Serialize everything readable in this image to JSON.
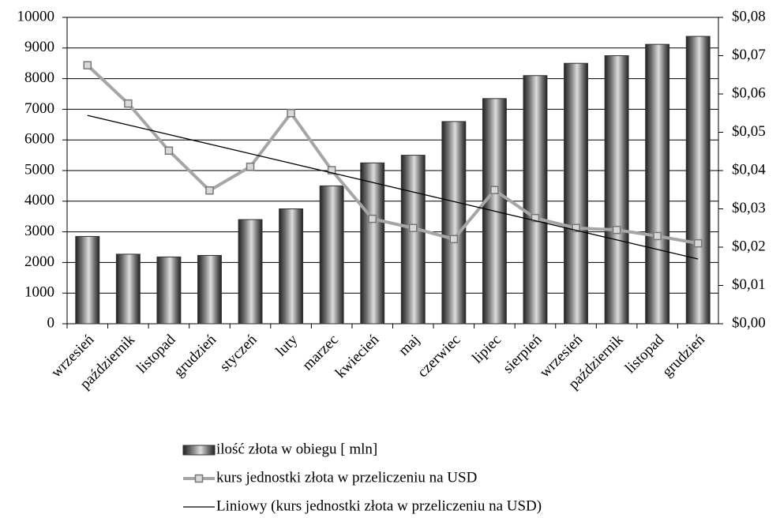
{
  "chart_data": {
    "type": "bar-line",
    "categories": [
      "wrzesień",
      "październik",
      "listopad",
      "grudzień",
      "styczeń",
      "luty",
      "marzec",
      "kwiecień",
      "maj",
      "czerwiec",
      "lipiec",
      "sierpień",
      "wrzesień",
      "październik",
      "listopad",
      "grudzień"
    ],
    "series": [
      {
        "name": "ilość złota w obiegu [ mln]",
        "type": "bar",
        "color": "#6e6e6e",
        "values": [
          2850,
          2270,
          2180,
          2230,
          3400,
          3750,
          4500,
          5250,
          5500,
          6600,
          7350,
          8100,
          8500,
          8750,
          9120,
          9380
        ]
      },
      {
        "name": "kurs jednostki złota w przeliczeniu na USD",
        "type": "line",
        "axis": "y2",
        "color": "#a6a6a6",
        "values": [
          0.0675,
          0.0575,
          0.0452,
          0.0348,
          0.041,
          0.055,
          0.0401,
          0.0274,
          0.025,
          0.0221,
          0.0349,
          0.0276,
          0.025,
          0.0245,
          0.0229,
          0.021
        ]
      },
      {
        "name": "Liniowy (kurs jednostki złota w przeliczeniu na USD)",
        "type": "trend",
        "axis": "y2",
        "color": "#000000",
        "values": [
          0.0544,
          0.0519,
          0.0494,
          0.0469,
          0.0444,
          0.0419,
          0.0394,
          0.0369,
          0.0344,
          0.0319,
          0.0294,
          0.0269,
          0.0244,
          0.0219,
          0.0194,
          0.0169
        ]
      }
    ],
    "ylim": [
      0,
      10000
    ],
    "yticks": [
      0,
      1000,
      2000,
      3000,
      4000,
      5000,
      6000,
      7000,
      8000,
      9000,
      10000
    ],
    "y2lim": [
      0,
      0.08
    ],
    "y2ticks": [
      {
        "value": 0,
        "label": "$0,00"
      },
      {
        "value": 0.01,
        "label": "$0,01"
      },
      {
        "value": 0.02,
        "label": "$0,02"
      },
      {
        "value": 0.03,
        "label": "$0,03"
      },
      {
        "value": 0.04,
        "label": "$0,04"
      },
      {
        "value": 0.05,
        "label": "$0,05"
      },
      {
        "value": 0.06,
        "label": "$0,06"
      },
      {
        "value": 0.07,
        "label": "$0,07"
      },
      {
        "value": 0.08,
        "label": "$0,08"
      }
    ],
    "grid": true,
    "legend": "bottom"
  }
}
